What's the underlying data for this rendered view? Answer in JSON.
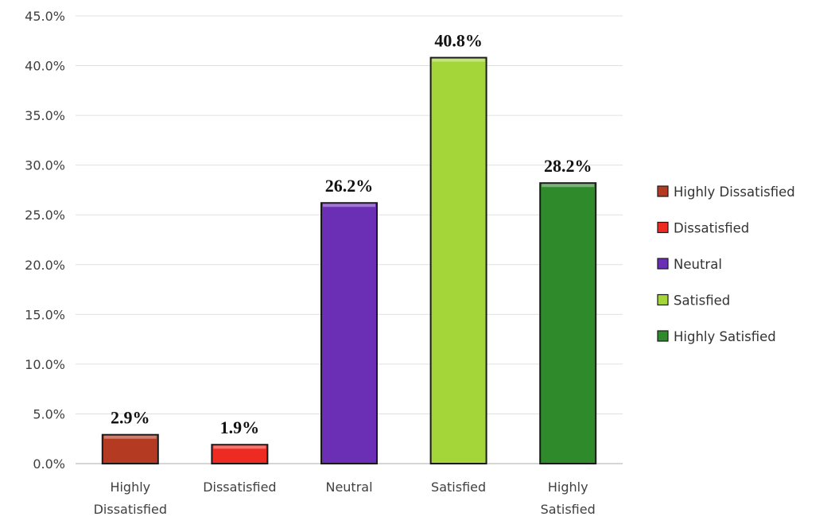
{
  "chart_data": {
    "type": "bar",
    "categories": [
      "Highly Dissatisfied",
      "Dissatisfied",
      "Neutral",
      "Satisfied",
      "Highly Satisfied"
    ],
    "category_labels": [
      [
        "Highly",
        "Dissatisfied"
      ],
      [
        "Dissatisfied"
      ],
      [
        "Neutral"
      ],
      [
        "Satisfied"
      ],
      [
        "Highly",
        "Satisfied"
      ]
    ],
    "values": [
      2.9,
      1.9,
      26.2,
      40.8,
      28.2
    ],
    "data_labels": [
      "2.9%",
      "1.9%",
      "26.2%",
      "40.8%",
      "28.2%"
    ],
    "colors": [
      "#b43a22",
      "#ee2b22",
      "#6a2fb5",
      "#a4d63a",
      "#2e8a2a"
    ],
    "title": "",
    "xlabel": "",
    "ylabel": "",
    "ylim": [
      0,
      45
    ],
    "yticks": [
      0,
      5,
      10,
      15,
      20,
      25,
      30,
      35,
      40,
      45
    ],
    "ytick_labels": [
      "0.0%",
      "5.0%",
      "10.0%",
      "15.0%",
      "20.0%",
      "25.0%",
      "30.0%",
      "35.0%",
      "40.0%",
      "45.0%"
    ],
    "grid": true,
    "legend": {
      "position": "right",
      "entries": [
        "Highly Dissatisfied",
        "Dissatisfied",
        "Neutral",
        "Satisfied",
        "Highly Satisfied"
      ]
    }
  }
}
